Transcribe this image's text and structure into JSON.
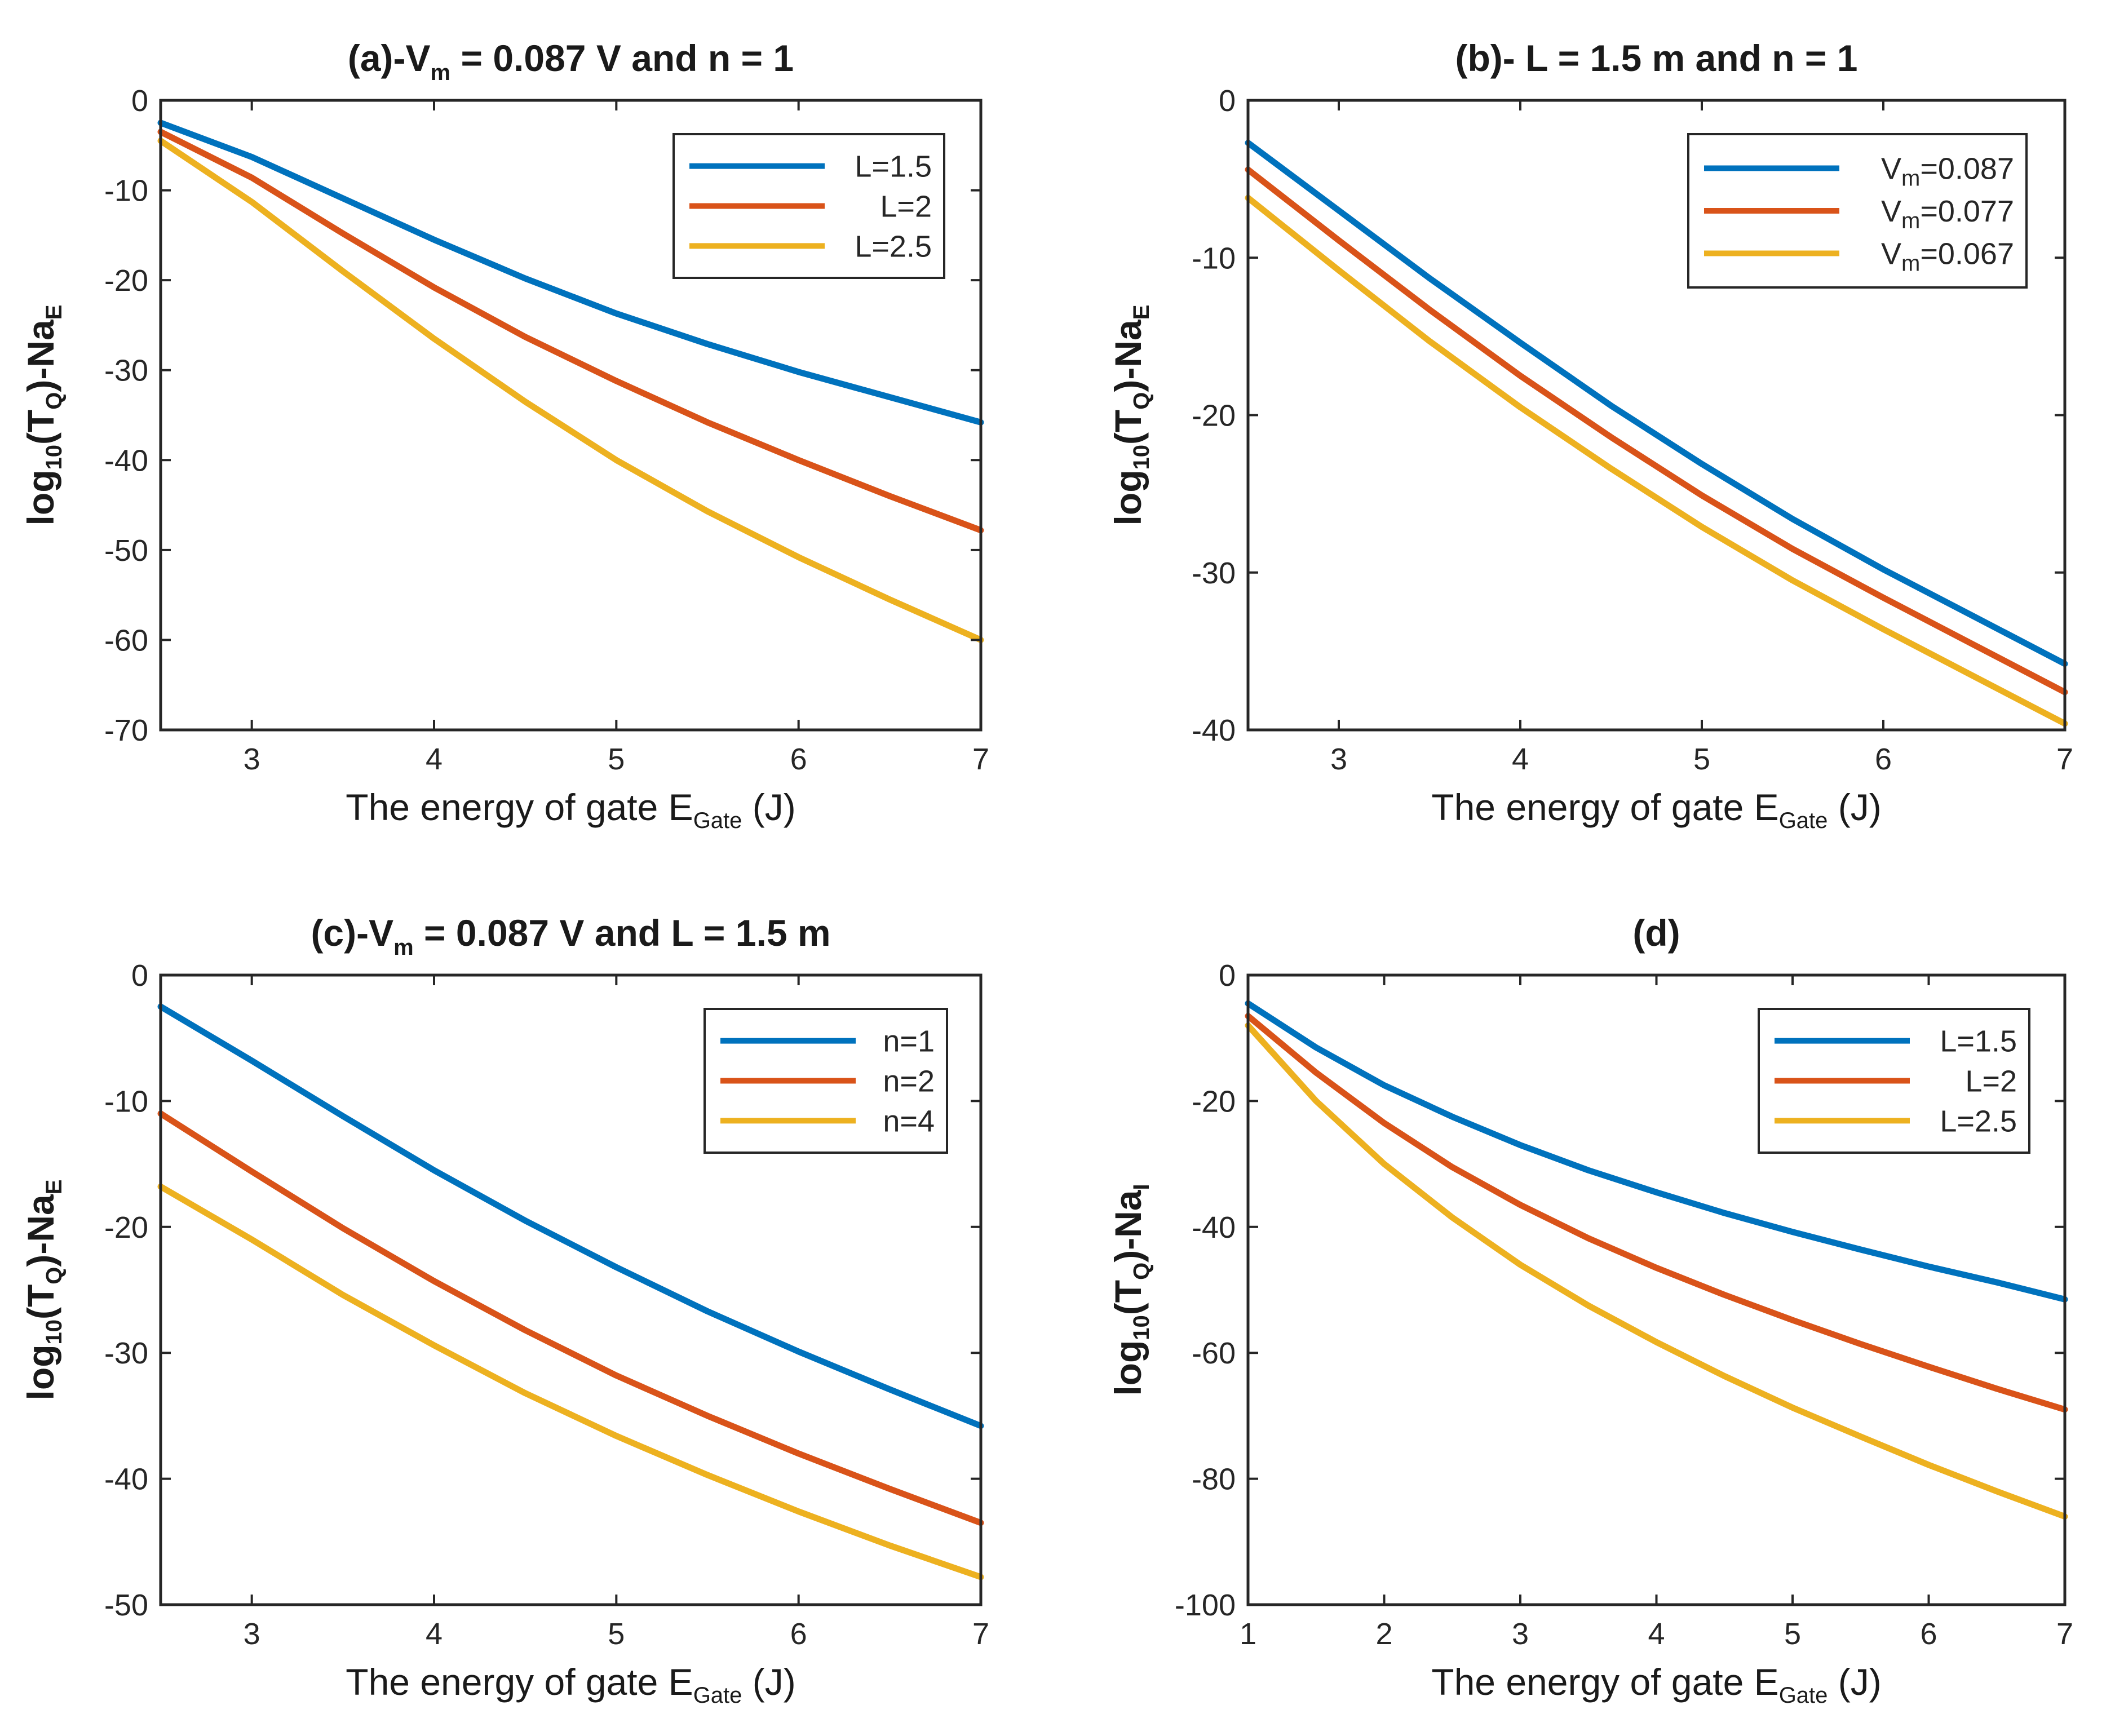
{
  "figure": {
    "panel_count": 4
  },
  "chart_data": [
    {
      "type": "line",
      "title": {
        "pre": "(a)-V",
        "sub": "m",
        "post": " = 0.087 V and n = 1"
      },
      "xlabel": {
        "pre": "The energy of gate E",
        "sub": "Gate",
        "post": " (J)"
      },
      "ylabel": {
        "pre": "log",
        "sub1": "10",
        "mid": "(T",
        "sub2": "Q",
        "post": ")-Na",
        "sub3": "E"
      },
      "xlim": [
        2.5,
        7
      ],
      "ylim": [
        -70,
        0
      ],
      "xticks": [
        3,
        4,
        5,
        6,
        7
      ],
      "yticks": [
        0,
        -10,
        -20,
        -30,
        -40,
        -50,
        -60,
        -70
      ],
      "legend_position": "top-right",
      "series": [
        {
          "label": "L=1.5",
          "label_main": "L=1.5",
          "color": "#0072BD",
          "x": [
            2.5,
            3,
            3.5,
            4,
            4.5,
            5,
            5.5,
            6,
            6.5,
            7
          ],
          "y": [
            -2.5,
            -6.3,
            -10.9,
            -15.5,
            -19.8,
            -23.7,
            -27.1,
            -30.2,
            -33.0,
            -35.8
          ]
        },
        {
          "label": "L=2",
          "label_main": "L=2",
          "color": "#D95319",
          "x": [
            2.5,
            3,
            3.5,
            4,
            4.5,
            5,
            5.5,
            6,
            6.5,
            7
          ],
          "y": [
            -3.5,
            -8.6,
            -14.8,
            -20.8,
            -26.3,
            -31.2,
            -35.8,
            -40.0,
            -44.0,
            -47.8
          ]
        },
        {
          "label": "L=2.5",
          "label_main": "L=2.5",
          "color": "#EDB120",
          "x": [
            2.5,
            3,
            3.5,
            4,
            4.5,
            5,
            5.5,
            6,
            6.5,
            7
          ],
          "y": [
            -4.5,
            -11.3,
            -19.0,
            -26.5,
            -33.5,
            -40.0,
            -45.7,
            -50.8,
            -55.5,
            -60.0
          ]
        }
      ]
    },
    {
      "type": "line",
      "title": {
        "pre": "(b)- L = 1.5 m and n = 1",
        "sub": "",
        "post": ""
      },
      "xlabel": {
        "pre": "The energy of gate E",
        "sub": "Gate",
        "post": " (J)"
      },
      "ylabel": {
        "pre": "log",
        "sub1": "10",
        "mid": "(T",
        "sub2": "Q",
        "post": ")-Na",
        "sub3": "E"
      },
      "xlim": [
        2.5,
        7
      ],
      "ylim": [
        -40,
        0
      ],
      "xticks": [
        3,
        4,
        5,
        6,
        7
      ],
      "yticks": [
        0,
        -10,
        -20,
        -30,
        -40
      ],
      "legend_position": "top-right",
      "series": [
        {
          "label": "Vm=0.087",
          "label_main": "V",
          "label_sub": "m",
          "label_post": "=0.087",
          "color": "#0072BD",
          "x": [
            2.5,
            3,
            3.5,
            4,
            4.5,
            5,
            5.5,
            6,
            6.5,
            7
          ],
          "y": [
            -2.7,
            -7.0,
            -11.3,
            -15.4,
            -19.4,
            -23.1,
            -26.6,
            -29.8,
            -32.8,
            -35.8
          ]
        },
        {
          "label": "Vm=0.077",
          "label_main": "V",
          "label_sub": "m",
          "label_post": "=0.077",
          "color": "#D95319",
          "x": [
            2.5,
            3,
            3.5,
            4,
            4.5,
            5,
            5.5,
            6,
            6.5,
            7
          ],
          "y": [
            -4.4,
            -8.9,
            -13.3,
            -17.5,
            -21.4,
            -25.1,
            -28.5,
            -31.6,
            -34.6,
            -37.6
          ]
        },
        {
          "label": "Vm=0.067",
          "label_main": "V",
          "label_sub": "m",
          "label_post": "=0.067",
          "color": "#EDB120",
          "x": [
            2.5,
            3,
            3.5,
            4,
            4.5,
            5,
            5.5,
            6,
            6.5,
            7
          ],
          "y": [
            -6.2,
            -10.8,
            -15.3,
            -19.5,
            -23.4,
            -27.1,
            -30.5,
            -33.6,
            -36.6,
            -39.6
          ]
        }
      ]
    },
    {
      "type": "line",
      "title": {
        "pre": "(c)-V",
        "sub": "m",
        "post": " = 0.087 V and L = 1.5 m"
      },
      "xlabel": {
        "pre": "The energy of gate E",
        "sub": "Gate",
        "post": " (J)"
      },
      "ylabel": {
        "pre": "log",
        "sub1": "10",
        "mid": "(T",
        "sub2": "Q",
        "post": ")-Na",
        "sub3": "E"
      },
      "xlim": [
        2.5,
        7
      ],
      "ylim": [
        -50,
        0
      ],
      "xticks": [
        3,
        4,
        5,
        6,
        7
      ],
      "yticks": [
        0,
        -10,
        -20,
        -30,
        -40,
        -50
      ],
      "legend_position": "top-right",
      "series": [
        {
          "label": "n=1",
          "label_main": "n=1",
          "color": "#0072BD",
          "x": [
            2.5,
            3,
            3.5,
            4,
            4.5,
            5,
            5.5,
            6,
            6.5,
            7
          ],
          "y": [
            -2.5,
            -6.8,
            -11.2,
            -15.5,
            -19.5,
            -23.2,
            -26.7,
            -29.9,
            -32.9,
            -35.8
          ]
        },
        {
          "label": "n=2",
          "label_main": "n=2",
          "color": "#D95319",
          "x": [
            2.5,
            3,
            3.5,
            4,
            4.5,
            5,
            5.5,
            6,
            6.5,
            7
          ],
          "y": [
            -11.0,
            -15.6,
            -20.1,
            -24.3,
            -28.2,
            -31.8,
            -35.0,
            -38.0,
            -40.8,
            -43.5
          ]
        },
        {
          "label": "n=4",
          "label_main": "n=4",
          "color": "#EDB120",
          "x": [
            2.5,
            3,
            3.5,
            4,
            4.5,
            5,
            5.5,
            6,
            6.5,
            7
          ],
          "y": [
            -16.8,
            -21.0,
            -25.4,
            -29.4,
            -33.2,
            -36.6,
            -39.7,
            -42.6,
            -45.3,
            -47.8
          ]
        }
      ]
    },
    {
      "type": "line",
      "title": {
        "pre": "(d)",
        "sub": "",
        "post": ""
      },
      "xlabel": {
        "pre": "The energy of gate E",
        "sub": "Gate",
        "post": " (J)"
      },
      "ylabel": {
        "pre": "log",
        "sub1": "10",
        "mid": "(T",
        "sub2": "Q",
        "post": ")-Na",
        "sub3": "I"
      },
      "xlim": [
        1,
        7
      ],
      "ylim": [
        -100,
        0
      ],
      "xticks": [
        1,
        2,
        3,
        4,
        5,
        6,
        7
      ],
      "yticks": [
        0,
        -20,
        -40,
        -60,
        -80,
        -100
      ],
      "legend_position": "top-right",
      "series": [
        {
          "label": "L=1.5",
          "label_main": "L=1.5",
          "color": "#0072BD",
          "x": [
            1,
            1.5,
            2,
            2.5,
            3,
            3.5,
            4,
            4.5,
            5,
            5.5,
            6,
            6.5,
            7
          ],
          "y": [
            -4.5,
            -11.5,
            -17.5,
            -22.5,
            -27.0,
            -31.0,
            -34.5,
            -37.8,
            -40.8,
            -43.6,
            -46.3,
            -48.8,
            -51.5
          ]
        },
        {
          "label": "L=2",
          "label_main": "L=2",
          "color": "#D95319",
          "x": [
            1,
            1.5,
            2,
            2.5,
            3,
            3.5,
            4,
            4.5,
            5,
            5.5,
            6,
            6.5,
            7
          ],
          "y": [
            -6.5,
            -15.5,
            -23.5,
            -30.5,
            -36.5,
            -41.8,
            -46.5,
            -50.8,
            -54.8,
            -58.6,
            -62.2,
            -65.7,
            -69.0
          ]
        },
        {
          "label": "L=2.5",
          "label_main": "L=2.5",
          "color": "#EDB120",
          "x": [
            1,
            1.5,
            2,
            2.5,
            3,
            3.5,
            4,
            4.5,
            5,
            5.5,
            6,
            6.5,
            7
          ],
          "y": [
            -8.0,
            -20.0,
            -30.0,
            -38.5,
            -46.0,
            -52.5,
            -58.3,
            -63.7,
            -68.7,
            -73.3,
            -77.8,
            -82.0,
            -86.0
          ]
        }
      ]
    }
  ]
}
